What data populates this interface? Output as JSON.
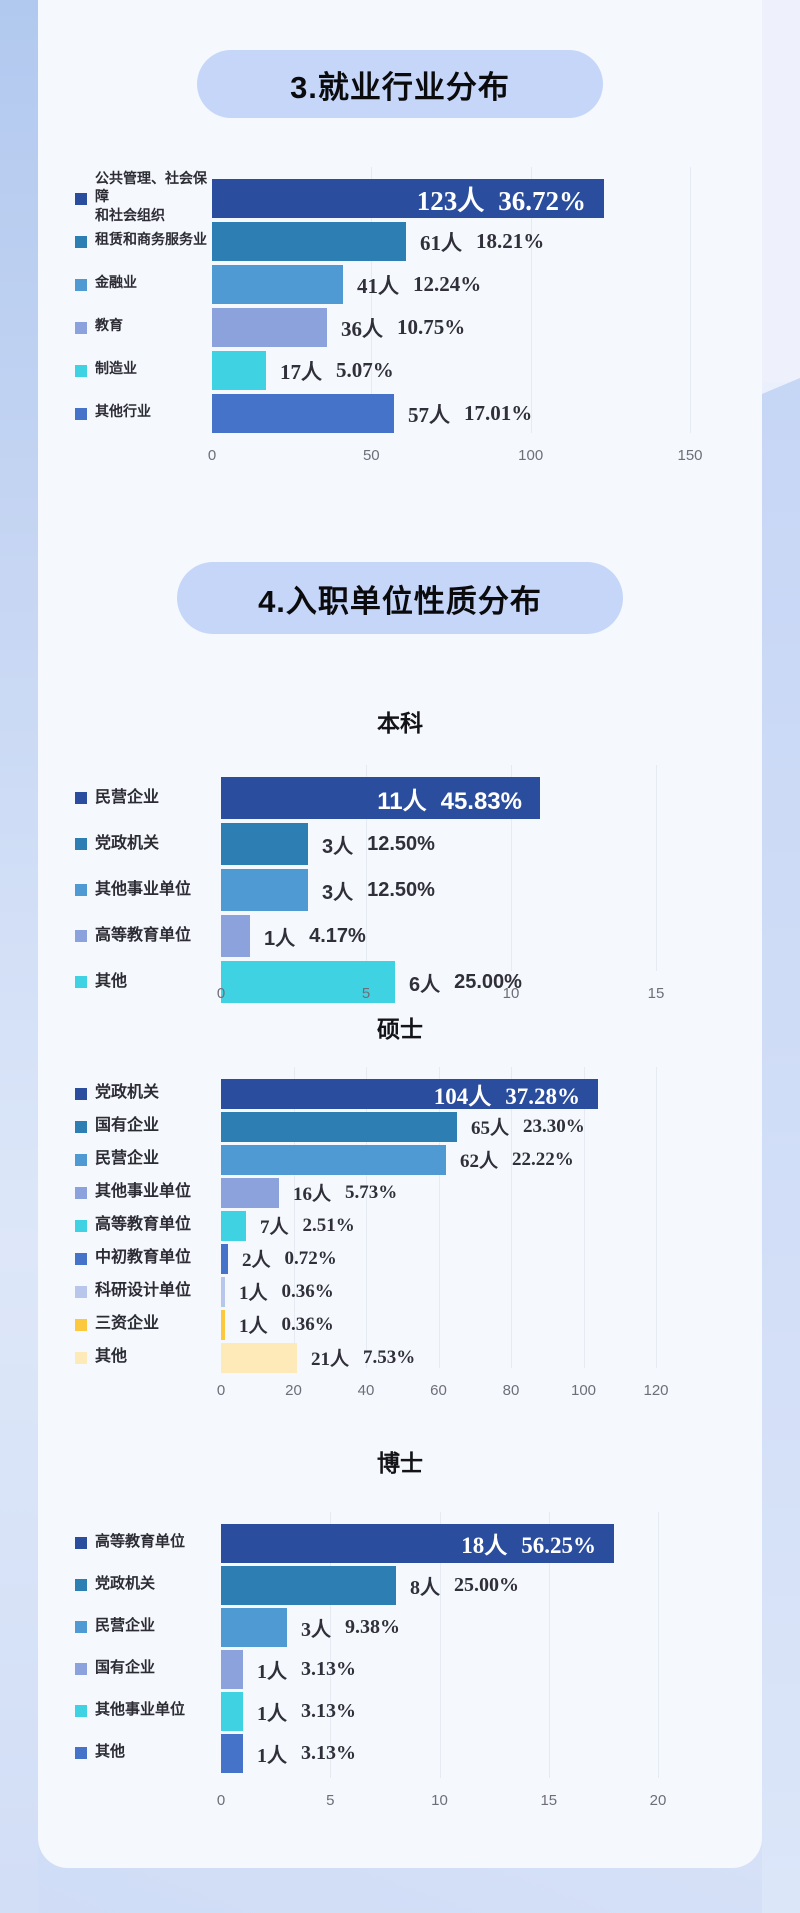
{
  "section_titles": [
    "3.就业行业分布",
    "4.入职单位性质分布"
  ],
  "palette": {
    "navy": "#2b4d9e",
    "teal": "#2d7eb3",
    "blue": "#4f9ad2",
    "periwinkle": "#8ba2dc",
    "cyan": "#3fd2e2",
    "royal": "#4573ca",
    "lavender": "#b9c6ec",
    "gold": "#fcc83e",
    "cream": "#fdeab8",
    "pill_bg": "#c5d6f9",
    "card_bg": "#f5f8fd"
  },
  "chart_data": [
    {
      "type": "bar",
      "orientation": "horizontal",
      "title": "",
      "categories": [
        "公共管理、社会保障\n和社会组织",
        "租赁和商务服务业",
        "金融业",
        "教育",
        "制造业",
        "其他行业"
      ],
      "values": [
        123,
        61,
        41,
        36,
        17,
        57
      ],
      "people_labels": [
        "123人",
        "61人",
        "41人",
        "36人",
        "17人",
        "57人"
      ],
      "percent_labels": [
        "36.72%",
        "18.21%",
        "12.24%",
        "10.75%",
        "5.07%",
        "17.01%"
      ],
      "colors": [
        "#2b4d9e",
        "#2d7eb3",
        "#4f9ad2",
        "#8ba2dc",
        "#3fd2e2",
        "#4573ca"
      ],
      "xticks": [
        0,
        50,
        100,
        150
      ],
      "xlim": [
        0,
        150
      ],
      "grid": true,
      "legend_position": "left"
    },
    {
      "type": "bar",
      "orientation": "horizontal",
      "title": "本科",
      "categories": [
        "民营企业",
        "党政机关",
        "其他事业单位",
        "高等教育单位",
        "其他"
      ],
      "values": [
        11,
        3,
        3,
        1,
        6
      ],
      "people_labels": [
        "11人",
        "3人",
        "3人",
        "1人",
        "6人"
      ],
      "percent_labels": [
        "45.83%",
        "12.50%",
        "12.50%",
        "4.17%",
        "25.00%"
      ],
      "colors": [
        "#2b4d9e",
        "#2d7eb3",
        "#4f9ad2",
        "#8ba2dc",
        "#3fd2e2"
      ],
      "xticks": [
        0,
        5,
        10,
        15
      ],
      "xlim": [
        0,
        15
      ],
      "grid": true,
      "legend_position": "left"
    },
    {
      "type": "bar",
      "orientation": "horizontal",
      "title": "硕士",
      "categories": [
        "党政机关",
        "国有企业",
        "民营企业",
        "其他事业单位",
        "高等教育单位",
        "中初教育单位",
        "科研设计单位",
        "三资企业",
        "其他"
      ],
      "values": [
        104,
        65,
        62,
        16,
        7,
        2,
        1,
        1,
        21
      ],
      "people_labels": [
        "104人",
        "65人",
        "62人",
        "16人",
        "7人",
        "2人",
        "1人",
        "1人",
        "21人"
      ],
      "percent_labels": [
        "37.28%",
        "23.30%",
        "22.22%",
        "5.73%",
        "2.51%",
        "0.72%",
        "0.36%",
        "0.36%",
        "7.53%"
      ],
      "colors": [
        "#2b4d9e",
        "#2d7eb3",
        "#4f9ad2",
        "#8ba2dc",
        "#3fd2e2",
        "#4573ca",
        "#b9c6ec",
        "#fcc83e",
        "#fdeab8"
      ],
      "xticks": [
        0,
        20,
        40,
        60,
        80,
        100,
        120
      ],
      "xlim": [
        0,
        120
      ],
      "grid": true,
      "legend_position": "left"
    },
    {
      "type": "bar",
      "orientation": "horizontal",
      "title": "博士",
      "categories": [
        "高等教育单位",
        "党政机关",
        "民营企业",
        "国有企业",
        "其他事业单位",
        "其他"
      ],
      "values": [
        18,
        8,
        3,
        1,
        1,
        1
      ],
      "people_labels": [
        "18人",
        "8人",
        "3人",
        "1人",
        "1人",
        "1人"
      ],
      "percent_labels": [
        "56.25%",
        "25.00%",
        "9.38%",
        "3.13%",
        "3.13%",
        "3.13%"
      ],
      "colors": [
        "#2b4d9e",
        "#2d7eb3",
        "#4f9ad2",
        "#8ba2dc",
        "#3fd2e2",
        "#4573ca"
      ],
      "xticks": [
        0,
        5,
        10,
        15,
        20
      ],
      "xlim": [
        0,
        20
      ],
      "grid": true,
      "legend_position": "left"
    }
  ]
}
